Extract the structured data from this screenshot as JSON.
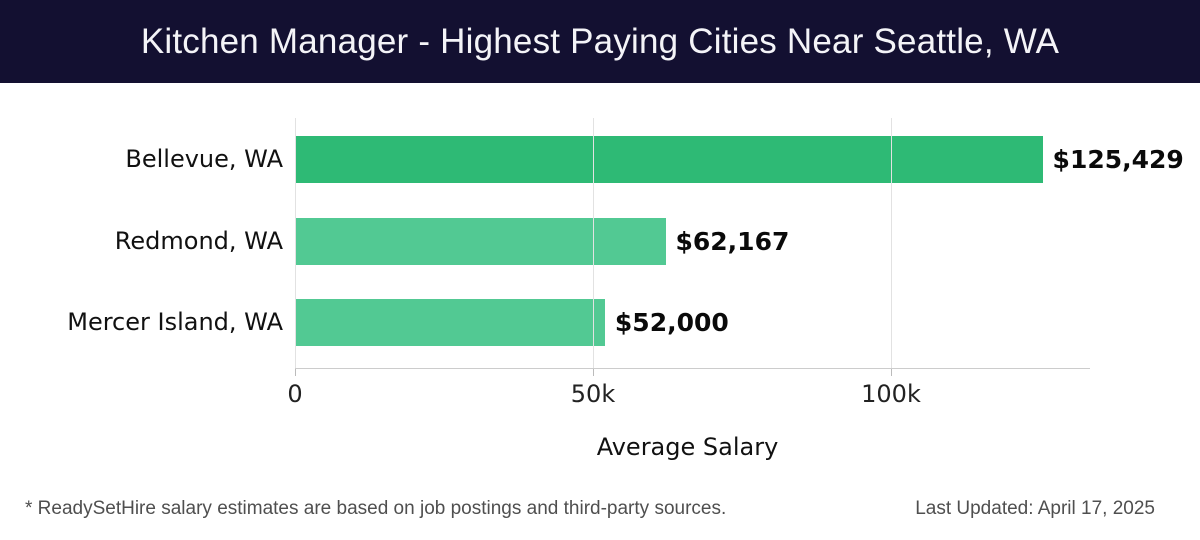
{
  "header": {
    "title": "Kitchen Manager - Highest Paying Cities Near Seattle, WA"
  },
  "chart_data": {
    "type": "bar",
    "orientation": "horizontal",
    "title": "Kitchen Manager - Highest Paying Cities Near Seattle, WA",
    "categories": [
      "Bellevue, WA",
      "Redmond, WA",
      "Mercer Island, WA"
    ],
    "values": [
      125429,
      62167,
      52000
    ],
    "value_labels": [
      "$125,429",
      "$62,167",
      "$52,000"
    ],
    "xlabel": "Average Salary",
    "ylabel": "",
    "xlim": [
      0,
      133000
    ],
    "xticks": [
      {
        "value": 0,
        "label": "0"
      },
      {
        "value": 50000,
        "label": "50k"
      },
      {
        "value": 100000,
        "label": "100k"
      }
    ],
    "grid": "vertical",
    "legend": "none",
    "bar_colors": [
      "#2eba75",
      "#52c993",
      "#52c993"
    ]
  },
  "footer": {
    "disclaimer": "* ReadySetHire salary estimates are based on job postings and third-party sources.",
    "last_updated": "Last Updated: April 17, 2025"
  },
  "colors": {
    "header_bg": "#131031",
    "header_text": "#f4f4f8",
    "grid": "#e2e2e2",
    "axis": "#cccccc",
    "label_text": "#111111",
    "muted_text": "#4f4f4f"
  }
}
